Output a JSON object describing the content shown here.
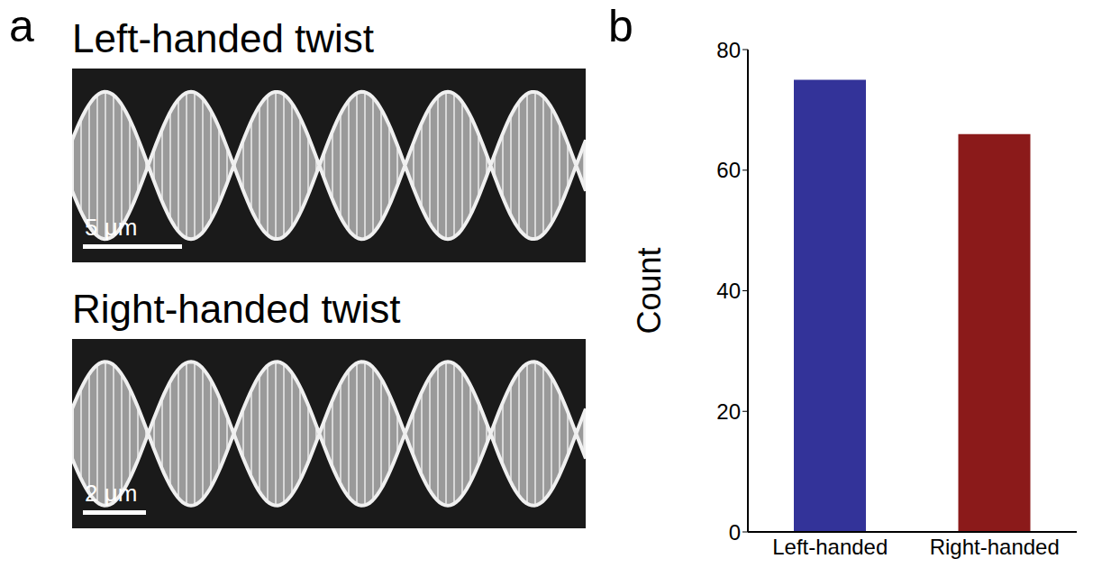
{
  "figure": {
    "panel_labels": [
      "a",
      "b"
    ],
    "images": [
      {
        "title": "Left-handed twist",
        "scale_bar": "5 μm"
      },
      {
        "title": "Right-handed twist",
        "scale_bar": "2 μm"
      }
    ]
  },
  "chart_data": {
    "type": "bar",
    "categories": [
      "Left-handed",
      "Right-handed"
    ],
    "values": [
      75,
      66
    ],
    "colors": [
      "#333399",
      "#8b1a1a"
    ],
    "y_label": "Count",
    "ylim": [
      0,
      80
    ],
    "yticks": [
      0,
      20,
      40,
      60,
      80
    ],
    "grid": false
  }
}
